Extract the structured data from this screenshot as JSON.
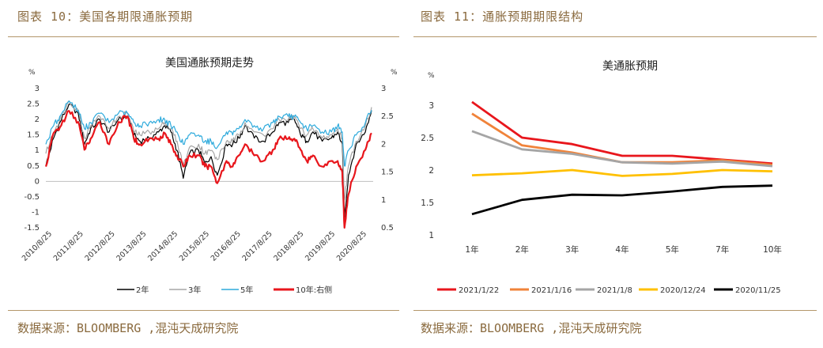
{
  "header": {
    "left_caption": "图表 10：美国各期限通胀预期",
    "right_caption": "图表 11：通胀预期期限结构"
  },
  "footer": {
    "left_source": "数据来源：BLOOMBERG ,混沌天成研究院",
    "right_source": "数据来源：BLOOMBERG ,混沌天成研究院"
  },
  "colors": {
    "caption": "#8a6a3e",
    "rule": "#b4976a"
  },
  "chart_data": [
    {
      "type": "line",
      "title": "美国通胀预期走势",
      "y_unit_left": "%",
      "y_unit_right": "%",
      "ylim_left": [
        -1.5,
        3
      ],
      "yticks_left": [
        "-1.5",
        "-1",
        "-0.5",
        "0",
        "0.5",
        "1",
        "1.5",
        "2",
        "2.5",
        "3"
      ],
      "ylim_right": [
        0.5,
        3
      ],
      "yticks_right": [
        "0.5",
        "1",
        "1.5",
        "2",
        "2.5",
        "3"
      ],
      "x_ticks": [
        "2010/8/25",
        "2011/8/25",
        "2012/8/25",
        "2013/8/25",
        "2014/8/25",
        "2015/8/25",
        "2016/8/25",
        "2017/8/25",
        "2018/8/25",
        "2019/8/25",
        "2020/8/25"
      ],
      "x_range": [
        2010.55,
        2021.15
      ],
      "legend_position": "bottom",
      "series": [
        {
          "name": "2年",
          "axis": "left",
          "color": "#000000",
          "x": [
            2010.55,
            2010.8,
            2011.0,
            2011.3,
            2011.6,
            2011.8,
            2012.0,
            2012.3,
            2012.6,
            2012.9,
            2013.2,
            2013.4,
            2013.6,
            2013.9,
            2014.2,
            2014.4,
            2014.6,
            2014.8,
            2015.0,
            2015.2,
            2015.5,
            2015.7,
            2015.9,
            2016.1,
            2016.4,
            2016.6,
            2016.8,
            2017.0,
            2017.3,
            2017.6,
            2017.9,
            2018.1,
            2018.4,
            2018.6,
            2018.8,
            2019.0,
            2019.2,
            2019.5,
            2019.8,
            2020.0,
            2020.15,
            2020.22,
            2020.35,
            2020.6,
            2020.9,
            2021.1
          ],
          "y": [
            0.5,
            1.4,
            1.9,
            2.5,
            2.2,
            1.2,
            1.7,
            2.0,
            1.6,
            2.0,
            2.1,
            1.5,
            1.3,
            1.4,
            1.6,
            1.8,
            1.6,
            1.0,
            0.1,
            0.9,
            1.0,
            0.6,
            0.8,
            0.2,
            1.2,
            1.2,
            1.4,
            1.8,
            1.4,
            1.3,
            1.6,
            1.9,
            1.9,
            2.0,
            1.5,
            1.3,
            1.6,
            1.3,
            1.4,
            1.6,
            1.2,
            -1.2,
            0.2,
            1.2,
            1.6,
            2.3
          ]
        },
        {
          "name": "3年",
          "axis": "left",
          "color": "#a6a6a6",
          "x": [
            2010.55,
            2010.8,
            2011.0,
            2011.3,
            2011.6,
            2011.8,
            2012.0,
            2012.3,
            2012.6,
            2012.9,
            2013.2,
            2013.4,
            2013.6,
            2013.9,
            2014.2,
            2014.4,
            2014.6,
            2014.8,
            2015.0,
            2015.2,
            2015.5,
            2015.7,
            2015.9,
            2016.1,
            2016.4,
            2016.6,
            2016.8,
            2017.0,
            2017.3,
            2017.6,
            2017.9,
            2018.1,
            2018.4,
            2018.6,
            2018.8,
            2019.0,
            2019.2,
            2019.5,
            2019.8,
            2020.0,
            2020.15,
            2020.22,
            2020.35,
            2020.6,
            2020.9,
            2021.1
          ],
          "y": [
            0.9,
            1.6,
            2.0,
            2.6,
            2.3,
            1.4,
            1.8,
            2.1,
            1.7,
            2.1,
            2.2,
            1.6,
            1.5,
            1.6,
            1.7,
            1.9,
            1.7,
            1.3,
            0.5,
            1.1,
            1.2,
            0.9,
            1.0,
            0.7,
            1.3,
            1.3,
            1.5,
            1.9,
            1.6,
            1.5,
            1.7,
            2.0,
            2.0,
            2.1,
            1.7,
            1.5,
            1.7,
            1.4,
            1.5,
            1.7,
            1.4,
            -0.6,
            0.5,
            1.3,
            1.8,
            2.4
          ]
        },
        {
          "name": "5年",
          "axis": "left",
          "color": "#2eaadc",
          "x": [
            2010.55,
            2010.8,
            2011.0,
            2011.3,
            2011.6,
            2011.8,
            2012.0,
            2012.3,
            2012.6,
            2012.9,
            2013.2,
            2013.4,
            2013.6,
            2013.9,
            2014.2,
            2014.4,
            2014.6,
            2014.8,
            2015.0,
            2015.2,
            2015.5,
            2015.7,
            2015.9,
            2016.1,
            2016.4,
            2016.6,
            2016.8,
            2017.0,
            2017.3,
            2017.6,
            2017.9,
            2018.1,
            2018.4,
            2018.6,
            2018.8,
            2019.0,
            2019.2,
            2019.5,
            2019.8,
            2020.0,
            2020.15,
            2020.22,
            2020.35,
            2020.6,
            2020.9,
            2021.1
          ],
          "y": [
            1.2,
            1.8,
            2.1,
            2.6,
            2.3,
            1.7,
            1.9,
            2.2,
            1.9,
            2.2,
            2.2,
            1.9,
            1.8,
            1.9,
            2.0,
            2.0,
            1.8,
            1.6,
            1.2,
            1.5,
            1.5,
            1.3,
            1.3,
            1.1,
            1.6,
            1.5,
            1.7,
            2.0,
            1.8,
            1.7,
            1.9,
            2.1,
            2.1,
            2.1,
            1.9,
            1.7,
            1.8,
            1.6,
            1.6,
            1.8,
            1.6,
            0.5,
            1.0,
            1.5,
            1.9,
            2.3
          ]
        },
        {
          "name": "10年:右侧",
          "axis": "right",
          "color": "#e8161c",
          "x": [
            2010.55,
            2010.8,
            2011.0,
            2011.3,
            2011.6,
            2011.8,
            2012.0,
            2012.3,
            2012.6,
            2012.9,
            2013.2,
            2013.4,
            2013.6,
            2013.9,
            2014.2,
            2014.4,
            2014.6,
            2014.8,
            2015.0,
            2015.2,
            2015.5,
            2015.7,
            2015.9,
            2016.1,
            2016.4,
            2016.6,
            2016.8,
            2017.0,
            2017.3,
            2017.6,
            2017.9,
            2018.1,
            2018.4,
            2018.6,
            2018.8,
            2019.0,
            2019.2,
            2019.5,
            2019.8,
            2020.0,
            2020.15,
            2020.22,
            2020.35,
            2020.6,
            2020.9,
            2021.1
          ],
          "y": [
            1.6,
            2.2,
            2.3,
            2.6,
            2.4,
            1.9,
            2.1,
            2.4,
            2.0,
            2.4,
            2.5,
            2.1,
            2.0,
            2.1,
            2.1,
            2.2,
            2.0,
            1.8,
            1.6,
            1.8,
            1.8,
            1.6,
            1.6,
            1.3,
            1.7,
            1.6,
            1.8,
            2.0,
            1.8,
            1.7,
            1.9,
            2.1,
            2.1,
            2.1,
            1.9,
            1.7,
            1.8,
            1.6,
            1.7,
            1.7,
            1.5,
            0.5,
            1.1,
            1.6,
            1.9,
            2.2
          ]
        }
      ]
    },
    {
      "type": "line",
      "title": "美通胀预期",
      "y_unit": "%",
      "ylim": [
        1,
        3
      ],
      "yticks": [
        "1",
        "1.5",
        "2",
        "2.5",
        "3"
      ],
      "categories": [
        "1年",
        "2年",
        "3年",
        "4年",
        "5年",
        "7年",
        "10年"
      ],
      "legend_position": "bottom",
      "series": [
        {
          "name": "2021/1/22",
          "color": "#e8161c",
          "values": [
            3.05,
            2.5,
            2.4,
            2.22,
            2.22,
            2.16,
            2.1
          ]
        },
        {
          "name": "2021/1/16",
          "color": "#f0833a",
          "values": [
            2.87,
            2.38,
            2.27,
            2.12,
            2.12,
            2.15,
            2.08
          ]
        },
        {
          "name": "2021/1/8",
          "color": "#a5a5a5",
          "values": [
            2.6,
            2.32,
            2.25,
            2.12,
            2.1,
            2.13,
            2.06
          ]
        },
        {
          "name": "2020/12/24",
          "color": "#ffc000",
          "values": [
            1.92,
            1.95,
            2.0,
            1.91,
            1.94,
            2.0,
            1.98
          ]
        },
        {
          "name": "2020/11/25",
          "color": "#000000",
          "values": [
            1.32,
            1.54,
            1.62,
            1.61,
            1.67,
            1.74,
            1.76
          ]
        }
      ]
    }
  ]
}
